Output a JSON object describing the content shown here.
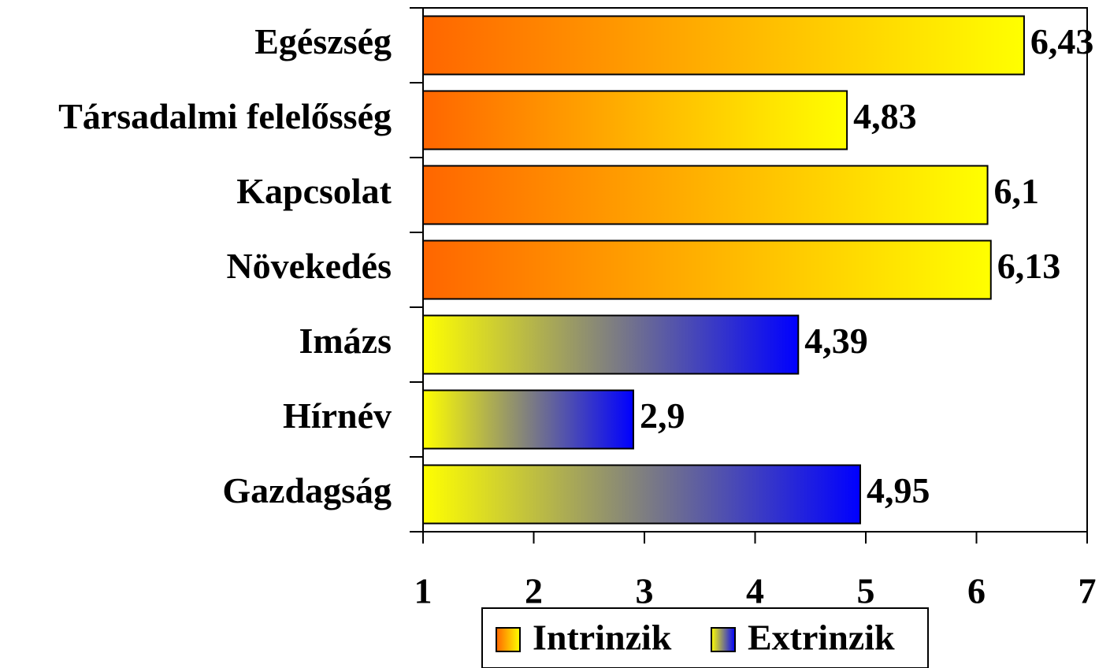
{
  "chart_data": {
    "type": "hbar",
    "categories": [
      "Egészség",
      "Társadalmi felelősség",
      "Kapcsolat",
      "Növekedés",
      "Imázs",
      "Hírnév",
      "Gazdagság"
    ],
    "series": [
      {
        "name": "Intrinzik",
        "gradient": [
          "#ff6600",
          "#ffff00"
        ],
        "values": [
          6.43,
          4.83,
          6.1,
          6.13,
          null,
          null,
          null
        ],
        "value_labels": [
          "6,43",
          "4,83",
          "6,1",
          "6,13",
          null,
          null,
          null
        ]
      },
      {
        "name": "Extrinzik",
        "gradient": [
          "#ffff00",
          "#0000ff"
        ],
        "values": [
          null,
          null,
          null,
          null,
          4.39,
          2.9,
          4.95
        ],
        "value_labels": [
          null,
          null,
          null,
          null,
          "4,39",
          "2,9",
          "4,95"
        ]
      }
    ],
    "xlim": [
      1,
      7
    ],
    "xticks": [
      1,
      2,
      3,
      4,
      5,
      6,
      7
    ]
  }
}
